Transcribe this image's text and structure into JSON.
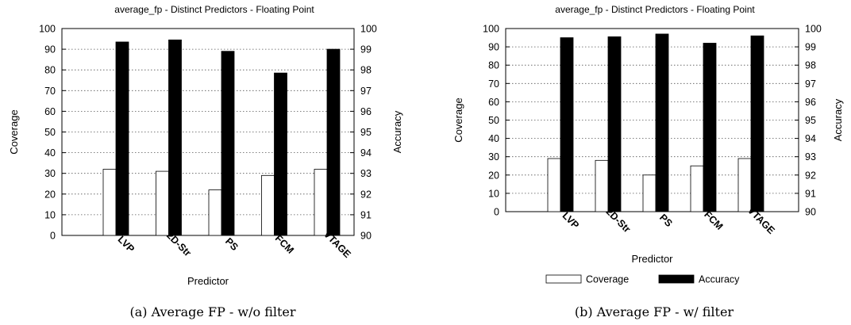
{
  "chart_data": [
    {
      "type": "bar",
      "title": "average_fp -  Distinct Predictors - Floating Point",
      "caption": "(a) Average FP - w/o filter",
      "xlabel": "Predictor",
      "ylabel": "Coverage",
      "y2label": "Accuracy",
      "categories": [
        "LVP",
        "2D-Str",
        "PS",
        "FCM",
        "VTAGE"
      ],
      "ylim": [
        0,
        100
      ],
      "y2lim": [
        90,
        100
      ],
      "yticks": [
        "0",
        "10",
        "20",
        "30",
        "40",
        "50",
        "60",
        "70",
        "80",
        "90",
        "100"
      ],
      "y2ticks": [
        "90",
        "91",
        "92",
        "93",
        "94",
        "95",
        "96",
        "97",
        "98",
        "99",
        "100"
      ],
      "grid": true,
      "legend": null,
      "series": [
        {
          "name": "Coverage",
          "axis": "left",
          "color": "#ffffff",
          "values": [
            32,
            31,
            22,
            29,
            32
          ]
        },
        {
          "name": "Accuracy",
          "axis": "right",
          "color": "#000000",
          "values": [
            99.35,
            99.45,
            98.9,
            97.85,
            99.0
          ]
        }
      ]
    },
    {
      "type": "bar",
      "title": "average_fp -  Distinct Predictors - Floating Point",
      "caption": "(b) Average FP - w/ filter",
      "xlabel": "Predictor",
      "ylabel": "Coverage",
      "y2label": "Accuracy",
      "categories": [
        "LVP",
        "2D-Str",
        "PS",
        "FCM",
        "VTAGE"
      ],
      "ylim": [
        0,
        100
      ],
      "y2lim": [
        90,
        100
      ],
      "yticks": [
        "0",
        "10",
        "20",
        "30",
        "40",
        "50",
        "60",
        "70",
        "80",
        "90",
        "100"
      ],
      "y2ticks": [
        "90",
        "91",
        "92",
        "93",
        "94",
        "95",
        "96",
        "97",
        "98",
        "99",
        "100"
      ],
      "grid": true,
      "legend": "bottom",
      "series": [
        {
          "name": "Coverage",
          "axis": "left",
          "color": "#ffffff",
          "values": [
            29,
            28,
            20,
            25,
            29
          ]
        },
        {
          "name": "Accuracy",
          "axis": "right",
          "color": "#000000",
          "values": [
            99.5,
            99.55,
            99.7,
            99.2,
            99.6
          ]
        }
      ]
    }
  ]
}
